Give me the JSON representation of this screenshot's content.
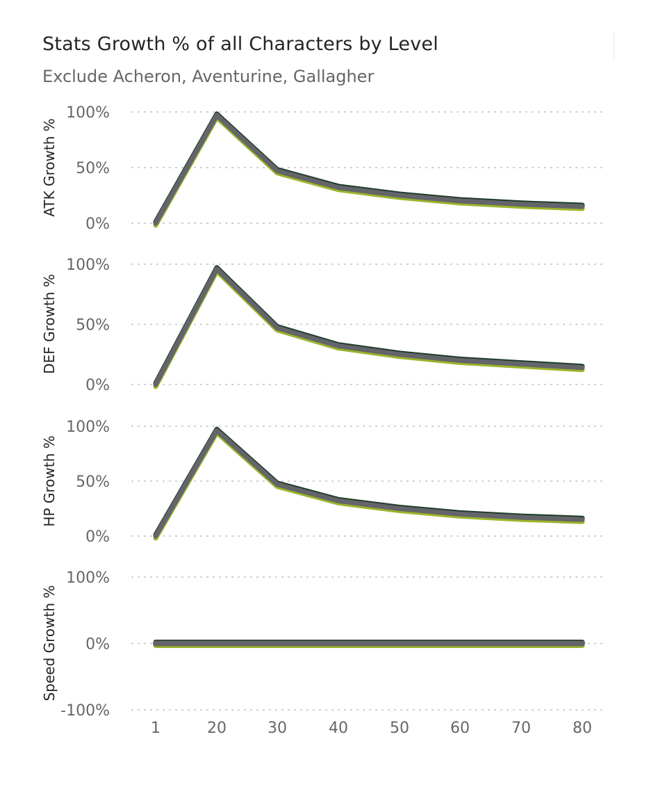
{
  "header": {
    "title": "Stats Growth % of all Characters by Level",
    "subtitle": "Exclude Acheron, Aventurine, Gallagher"
  },
  "chart_data": [
    {
      "type": "line",
      "ylabel": "ATK Growth %",
      "yticks": [
        "100%",
        "50%",
        "0%"
      ],
      "ylim": [
        0,
        100
      ],
      "x": [
        1,
        20,
        30,
        40,
        50,
        60,
        70,
        80
      ],
      "xticks": [
        "1",
        "20",
        "30",
        "40",
        "50",
        "60",
        "70",
        "80"
      ],
      "grid": true,
      "series": [
        {
          "values": [
            0,
            97,
            47,
            32,
            25,
            20,
            17,
            15
          ],
          "color": "#64656a"
        }
      ]
    },
    {
      "type": "line",
      "ylabel": "DEF Growth %",
      "yticks": [
        "100%",
        "50%",
        "0%"
      ],
      "ylim": [
        0,
        100
      ],
      "x": [
        1,
        20,
        30,
        40,
        50,
        60,
        70,
        80
      ],
      "xticks": [
        "1",
        "20",
        "30",
        "40",
        "50",
        "60",
        "70",
        "80"
      ],
      "grid": true,
      "series": [
        {
          "values": [
            0,
            96,
            47,
            32,
            25,
            20,
            17,
            14
          ],
          "color": "#64656a"
        }
      ]
    },
    {
      "type": "line",
      "ylabel": "HP Growth %",
      "yticks": [
        "100%",
        "50%",
        "0%"
      ],
      "ylim": [
        0,
        100
      ],
      "x": [
        1,
        20,
        30,
        40,
        50,
        60,
        70,
        80
      ],
      "xticks": [
        "1",
        "20",
        "30",
        "40",
        "50",
        "60",
        "70",
        "80"
      ],
      "grid": true,
      "series": [
        {
          "values": [
            0,
            96,
            47,
            32,
            25,
            20,
            17,
            15
          ],
          "color": "#64656a"
        }
      ]
    },
    {
      "type": "line",
      "ylabel": "Speed Growth %",
      "yticks": [
        "100%",
        "0%",
        "-100%"
      ],
      "ylim": [
        -100,
        100
      ],
      "x": [
        1,
        20,
        30,
        40,
        50,
        60,
        70,
        80
      ],
      "xticks": [
        "1",
        "20",
        "30",
        "40",
        "50",
        "60",
        "70",
        "80"
      ],
      "grid": true,
      "series": [
        {
          "values": [
            0,
            0,
            0,
            0,
            0,
            0,
            0,
            0
          ],
          "color": "#64656a"
        }
      ]
    }
  ]
}
